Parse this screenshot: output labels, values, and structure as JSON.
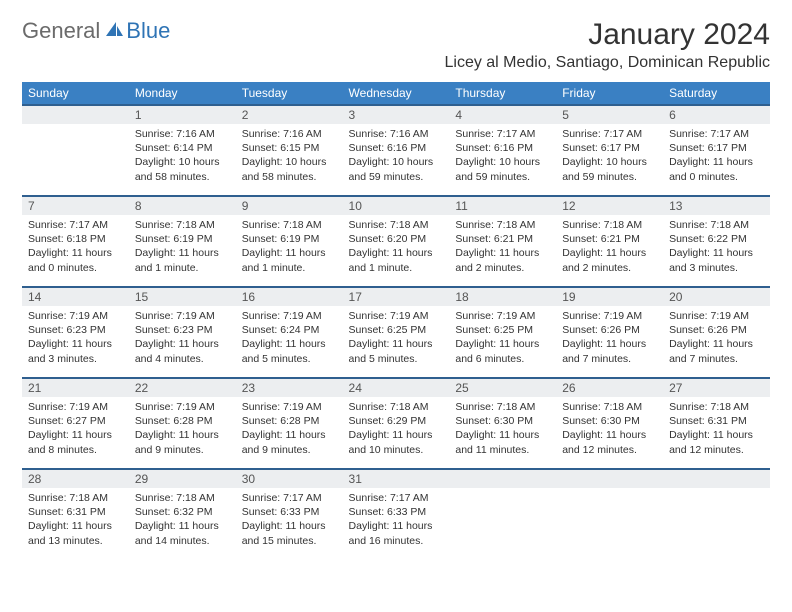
{
  "brand": {
    "part1": "General",
    "part2": "Blue"
  },
  "title": "January 2024",
  "location": "Licey al Medio, Santiago, Dominican Republic",
  "colors": {
    "header_bg": "#3a80c3",
    "header_text": "#ffffff",
    "row_divider": "#2f5f8f",
    "daynum_bg": "#eceef0",
    "body_text": "#333333",
    "logo_gray": "#6b6b6b",
    "logo_blue": "#2f74b5"
  },
  "day_headers": [
    "Sunday",
    "Monday",
    "Tuesday",
    "Wednesday",
    "Thursday",
    "Friday",
    "Saturday"
  ],
  "weeks": [
    {
      "nums": [
        "",
        "1",
        "2",
        "3",
        "4",
        "5",
        "6"
      ],
      "cells": [
        null,
        {
          "sunrise": "Sunrise: 7:16 AM",
          "sunset": "Sunset: 6:14 PM",
          "day1": "Daylight: 10 hours",
          "day2": "and 58 minutes."
        },
        {
          "sunrise": "Sunrise: 7:16 AM",
          "sunset": "Sunset: 6:15 PM",
          "day1": "Daylight: 10 hours",
          "day2": "and 58 minutes."
        },
        {
          "sunrise": "Sunrise: 7:16 AM",
          "sunset": "Sunset: 6:16 PM",
          "day1": "Daylight: 10 hours",
          "day2": "and 59 minutes."
        },
        {
          "sunrise": "Sunrise: 7:17 AM",
          "sunset": "Sunset: 6:16 PM",
          "day1": "Daylight: 10 hours",
          "day2": "and 59 minutes."
        },
        {
          "sunrise": "Sunrise: 7:17 AM",
          "sunset": "Sunset: 6:17 PM",
          "day1": "Daylight: 10 hours",
          "day2": "and 59 minutes."
        },
        {
          "sunrise": "Sunrise: 7:17 AM",
          "sunset": "Sunset: 6:17 PM",
          "day1": "Daylight: 11 hours",
          "day2": "and 0 minutes."
        }
      ]
    },
    {
      "nums": [
        "7",
        "8",
        "9",
        "10",
        "11",
        "12",
        "13"
      ],
      "cells": [
        {
          "sunrise": "Sunrise: 7:17 AM",
          "sunset": "Sunset: 6:18 PM",
          "day1": "Daylight: 11 hours",
          "day2": "and 0 minutes."
        },
        {
          "sunrise": "Sunrise: 7:18 AM",
          "sunset": "Sunset: 6:19 PM",
          "day1": "Daylight: 11 hours",
          "day2": "and 1 minute."
        },
        {
          "sunrise": "Sunrise: 7:18 AM",
          "sunset": "Sunset: 6:19 PM",
          "day1": "Daylight: 11 hours",
          "day2": "and 1 minute."
        },
        {
          "sunrise": "Sunrise: 7:18 AM",
          "sunset": "Sunset: 6:20 PM",
          "day1": "Daylight: 11 hours",
          "day2": "and 1 minute."
        },
        {
          "sunrise": "Sunrise: 7:18 AM",
          "sunset": "Sunset: 6:21 PM",
          "day1": "Daylight: 11 hours",
          "day2": "and 2 minutes."
        },
        {
          "sunrise": "Sunrise: 7:18 AM",
          "sunset": "Sunset: 6:21 PM",
          "day1": "Daylight: 11 hours",
          "day2": "and 2 minutes."
        },
        {
          "sunrise": "Sunrise: 7:18 AM",
          "sunset": "Sunset: 6:22 PM",
          "day1": "Daylight: 11 hours",
          "day2": "and 3 minutes."
        }
      ]
    },
    {
      "nums": [
        "14",
        "15",
        "16",
        "17",
        "18",
        "19",
        "20"
      ],
      "cells": [
        {
          "sunrise": "Sunrise: 7:19 AM",
          "sunset": "Sunset: 6:23 PM",
          "day1": "Daylight: 11 hours",
          "day2": "and 3 minutes."
        },
        {
          "sunrise": "Sunrise: 7:19 AM",
          "sunset": "Sunset: 6:23 PM",
          "day1": "Daylight: 11 hours",
          "day2": "and 4 minutes."
        },
        {
          "sunrise": "Sunrise: 7:19 AM",
          "sunset": "Sunset: 6:24 PM",
          "day1": "Daylight: 11 hours",
          "day2": "and 5 minutes."
        },
        {
          "sunrise": "Sunrise: 7:19 AM",
          "sunset": "Sunset: 6:25 PM",
          "day1": "Daylight: 11 hours",
          "day2": "and 5 minutes."
        },
        {
          "sunrise": "Sunrise: 7:19 AM",
          "sunset": "Sunset: 6:25 PM",
          "day1": "Daylight: 11 hours",
          "day2": "and 6 minutes."
        },
        {
          "sunrise": "Sunrise: 7:19 AM",
          "sunset": "Sunset: 6:26 PM",
          "day1": "Daylight: 11 hours",
          "day2": "and 7 minutes."
        },
        {
          "sunrise": "Sunrise: 7:19 AM",
          "sunset": "Sunset: 6:26 PM",
          "day1": "Daylight: 11 hours",
          "day2": "and 7 minutes."
        }
      ]
    },
    {
      "nums": [
        "21",
        "22",
        "23",
        "24",
        "25",
        "26",
        "27"
      ],
      "cells": [
        {
          "sunrise": "Sunrise: 7:19 AM",
          "sunset": "Sunset: 6:27 PM",
          "day1": "Daylight: 11 hours",
          "day2": "and 8 minutes."
        },
        {
          "sunrise": "Sunrise: 7:19 AM",
          "sunset": "Sunset: 6:28 PM",
          "day1": "Daylight: 11 hours",
          "day2": "and 9 minutes."
        },
        {
          "sunrise": "Sunrise: 7:19 AM",
          "sunset": "Sunset: 6:28 PM",
          "day1": "Daylight: 11 hours",
          "day2": "and 9 minutes."
        },
        {
          "sunrise": "Sunrise: 7:18 AM",
          "sunset": "Sunset: 6:29 PM",
          "day1": "Daylight: 11 hours",
          "day2": "and 10 minutes."
        },
        {
          "sunrise": "Sunrise: 7:18 AM",
          "sunset": "Sunset: 6:30 PM",
          "day1": "Daylight: 11 hours",
          "day2": "and 11 minutes."
        },
        {
          "sunrise": "Sunrise: 7:18 AM",
          "sunset": "Sunset: 6:30 PM",
          "day1": "Daylight: 11 hours",
          "day2": "and 12 minutes."
        },
        {
          "sunrise": "Sunrise: 7:18 AM",
          "sunset": "Sunset: 6:31 PM",
          "day1": "Daylight: 11 hours",
          "day2": "and 12 minutes."
        }
      ]
    },
    {
      "nums": [
        "28",
        "29",
        "30",
        "31",
        "",
        "",
        ""
      ],
      "cells": [
        {
          "sunrise": "Sunrise: 7:18 AM",
          "sunset": "Sunset: 6:31 PM",
          "day1": "Daylight: 11 hours",
          "day2": "and 13 minutes."
        },
        {
          "sunrise": "Sunrise: 7:18 AM",
          "sunset": "Sunset: 6:32 PM",
          "day1": "Daylight: 11 hours",
          "day2": "and 14 minutes."
        },
        {
          "sunrise": "Sunrise: 7:17 AM",
          "sunset": "Sunset: 6:33 PM",
          "day1": "Daylight: 11 hours",
          "day2": "and 15 minutes."
        },
        {
          "sunrise": "Sunrise: 7:17 AM",
          "sunset": "Sunset: 6:33 PM",
          "day1": "Daylight: 11 hours",
          "day2": "and 16 minutes."
        },
        null,
        null,
        null
      ]
    }
  ]
}
